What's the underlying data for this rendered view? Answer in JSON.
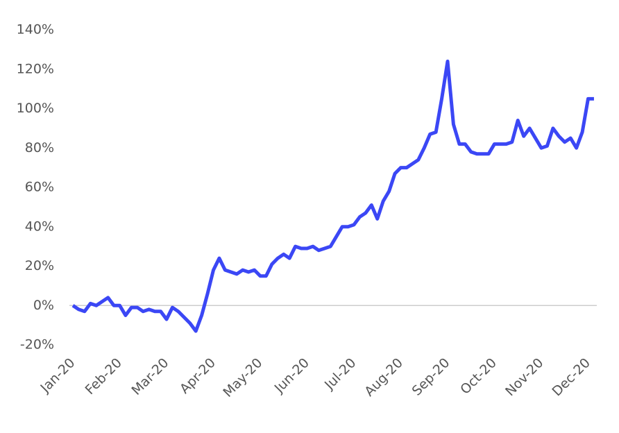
{
  "chart_data": {
    "type": "line",
    "categories": [
      "Jan-20",
      null,
      null,
      null,
      null,
      null,
      null,
      null,
      "Feb-20",
      null,
      null,
      null,
      null,
      null,
      null,
      null,
      "Mar-20",
      null,
      null,
      null,
      null,
      null,
      null,
      null,
      "Apr-20",
      null,
      null,
      null,
      null,
      null,
      null,
      null,
      "May-20",
      null,
      null,
      null,
      null,
      null,
      null,
      null,
      "Jun-20",
      null,
      null,
      null,
      null,
      null,
      null,
      null,
      "Jul-20",
      null,
      null,
      null,
      null,
      null,
      null,
      null,
      "Aug-20",
      null,
      null,
      null,
      null,
      null,
      null,
      null,
      "Sep-20",
      null,
      null,
      null,
      null,
      null,
      null,
      null,
      "Oct-20",
      null,
      null,
      null,
      null,
      null,
      null,
      null,
      "Nov-20",
      null,
      null,
      null,
      null,
      null,
      null,
      null,
      "Dec-20",
      null
    ],
    "values": [
      0,
      -2,
      -3,
      1,
      0,
      2,
      4,
      0,
      0,
      -5,
      -1,
      -1,
      -3,
      -2,
      -3,
      -3,
      -7,
      -1,
      -3,
      -6,
      -9,
      -13,
      -5,
      6,
      18,
      24,
      18,
      17,
      16,
      18,
      17,
      18,
      15,
      15,
      21,
      24,
      26,
      24,
      30,
      29,
      29,
      30,
      28,
      29,
      30,
      35,
      40,
      40,
      41,
      45,
      47,
      51,
      44,
      53,
      58,
      67,
      70,
      70,
      72,
      74,
      80,
      87,
      88,
      105,
      124,
      92,
      82,
      82,
      78,
      77,
      77,
      77,
      82,
      82,
      82,
      83,
      94,
      86,
      90,
      85,
      80,
      81,
      90,
      86,
      83,
      85,
      80,
      88,
      105,
      105
    ],
    "color": "#3b47f5",
    "ylim": [
      -20,
      140
    ],
    "yticks": [
      {
        "value": 140,
        "label": "140%"
      },
      {
        "value": 120,
        "label": "120%"
      },
      {
        "value": 100,
        "label": "100%"
      },
      {
        "value": 80,
        "label": "80%"
      },
      {
        "value": 60,
        "label": "60%"
      },
      {
        "value": 40,
        "label": "40%"
      },
      {
        "value": 20,
        "label": "20%"
      },
      {
        "value": 0,
        "label": "0%"
      },
      {
        "value": -20,
        "label": "-20%"
      }
    ]
  }
}
